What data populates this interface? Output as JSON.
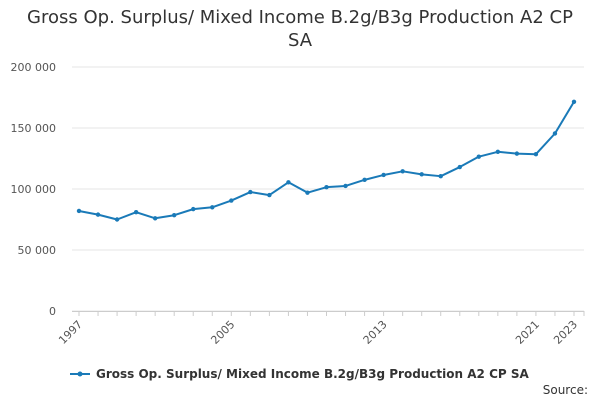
{
  "chart_data": {
    "type": "line",
    "title": "Gross Op. Surplus/ Mixed Income B.2g/B3g Production A2 CP SA",
    "xlabel": "",
    "ylabel": "",
    "x": [
      1997,
      1998,
      1999,
      2000,
      2001,
      2002,
      2003,
      2004,
      2005,
      2006,
      2007,
      2008,
      2009,
      2010,
      2011,
      2012,
      2013,
      2014,
      2015,
      2016,
      2017,
      2018,
      2019,
      2020,
      2021,
      2022,
      2023
    ],
    "x_tick_labels": [
      "1997",
      "2005",
      "2013",
      "2021",
      "2023"
    ],
    "x_tick_values": [
      1997,
      2005,
      2013,
      2021,
      2023
    ],
    "xlim": [
      1997,
      2023
    ],
    "ylim": [
      0,
      200000
    ],
    "y_tick_labels": [
      "0",
      "50 000",
      "100 000",
      "150 000",
      "200 000"
    ],
    "y_tick_values": [
      0,
      50000,
      100000,
      150000,
      200000
    ],
    "grid": true,
    "legend_position": "bottom-left",
    "series": [
      {
        "name": "Gross Op. Surplus/ Mixed Income B.2g/B3g Production A2 CP SA",
        "color": "#1a7ab8",
        "values": [
          82000,
          79000,
          75000,
          81000,
          76000,
          78500,
          83500,
          85000,
          90500,
          97500,
          95000,
          105500,
          97000,
          101500,
          102500,
          107500,
          111500,
          114500,
          112000,
          110500,
          118000,
          126500,
          130500,
          129000,
          128500,
          145500,
          171500
        ]
      }
    ]
  },
  "source_label": "Source:"
}
